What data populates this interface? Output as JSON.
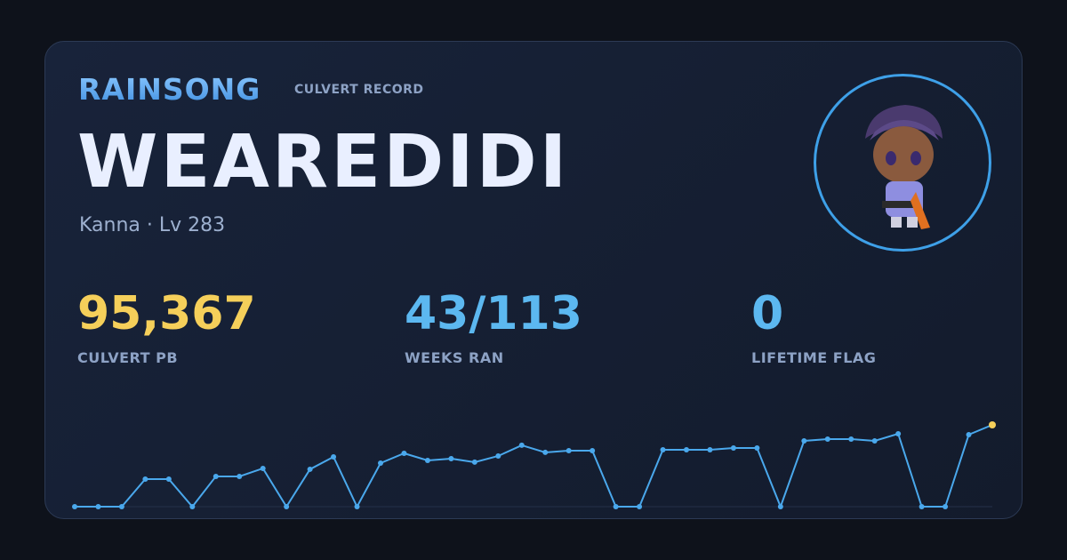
{
  "header": {
    "brand": "RAINSONG",
    "subtitle": "CULVERT RECORD",
    "character": "WEAREDIDI",
    "meta": "Kanna · Lv 283"
  },
  "stats": [
    {
      "value": "95,367",
      "label": "CULVERT PB",
      "color": "#f5cf5a"
    },
    {
      "value": "43/113",
      "label": "WEEKS RAN",
      "color": "#5cb8f0"
    },
    {
      "value": "0",
      "label": "LIFETIME FLAG",
      "color": "#5cb8f0"
    }
  ],
  "chart_data": {
    "type": "line",
    "color": "#4aa8ec",
    "highlight_color": "#f5cf5a",
    "values": [
      0,
      0,
      0,
      32100,
      32100,
      0,
      35300,
      35300,
      44600,
      0,
      43600,
      58100,
      0,
      50800,
      62200,
      53900,
      56000,
      51900,
      59100,
      71600,
      63300,
      65300,
      65300,
      0,
      0,
      66400,
      66400,
      66400,
      68400,
      68400,
      0,
      76700,
      78800,
      78800,
      76700,
      85000,
      0,
      0,
      84000,
      95367
    ]
  }
}
